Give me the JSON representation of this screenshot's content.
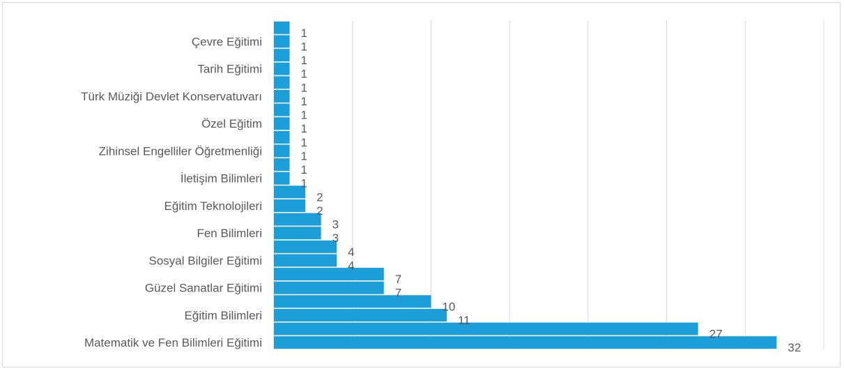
{
  "chart_data": {
    "type": "bar",
    "orientation": "horizontal",
    "categories": [
      "Matematik ve Fen Bilimleri Eğitimi",
      "",
      "Eğitim Bilimleri",
      "",
      "Güzel Sanatlar Eğitimi",
      "",
      "Sosyal Bilgiler Eğitimi",
      "",
      "Fen Bilimleri",
      "",
      "Eğitim Teknolojileri",
      "",
      "İletişim Bilimleri",
      "",
      "Zihinsel Engelliler Öğretmenliği",
      "",
      "Özel Eğitim",
      "",
      "Türk Müziği Devlet Konservatuvarı",
      "",
      "Tarih Eğitimi",
      "",
      "Çevre Eğitimi",
      ""
    ],
    "values": [
      32,
      27,
      11,
      10,
      7,
      7,
      4,
      4,
      3,
      3,
      2,
      2,
      1,
      1,
      1,
      1,
      1,
      1,
      1,
      1,
      1,
      1,
      1,
      1
    ],
    "data_labels": [
      "32",
      "27",
      "11",
      "10",
      "7",
      "7",
      "4",
      "4",
      "3",
      "3",
      "2",
      "2",
      "1",
      "1",
      "1",
      "1",
      "1",
      "1",
      "1",
      "1",
      "1",
      "1",
      "1",
      "1"
    ],
    "title": "",
    "xlabel": "",
    "ylabel": "",
    "xlim": [
      0,
      35
    ],
    "x_gridline_step": 5,
    "x_tick_labels_shown": false,
    "grid": "vertical",
    "legend": "none",
    "bar_color": "#1c9fd9",
    "gridline_color": "#d9d9d9",
    "text_color": "#595959"
  }
}
